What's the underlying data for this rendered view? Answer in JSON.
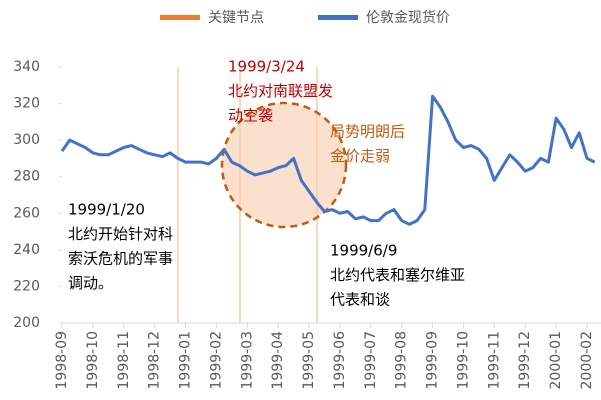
{
  "chart_data": {
    "type": "line",
    "key_nodes": {
      "name": "关键节点",
      "color": "#ed7d31"
    },
    "categories": [
      "1998-09",
      null,
      null,
      null,
      "1998-10",
      null,
      null,
      null,
      "1998-11",
      null,
      null,
      null,
      "1998-12",
      null,
      null,
      null,
      "1999-01",
      null,
      null,
      null,
      "1999-02",
      null,
      null,
      null,
      "1999-03",
      null,
      null,
      null,
      "1999-04",
      null,
      null,
      null,
      "1999-05",
      null,
      null,
      null,
      "1999-06",
      null,
      null,
      null,
      "1999-07",
      null,
      null,
      null,
      "1999-08",
      null,
      null,
      null,
      "1999-09",
      null,
      null,
      null,
      "1999-10",
      null,
      null,
      null,
      "1999-11",
      null,
      null,
      null,
      "1999-12",
      null,
      null,
      null,
      "2000-01",
      null,
      null,
      null,
      "2000-02",
      null
    ],
    "series": [
      {
        "name": "伦敦金现货价",
        "color": "#4472c4",
        "values": [
          294,
          300,
          298,
          296,
          293,
          292,
          292,
          294,
          296,
          297,
          295,
          293,
          292,
          291,
          293,
          290,
          288,
          288,
          288,
          287,
          290,
          295,
          288,
          286,
          283,
          281,
          282,
          283,
          285,
          286,
          290,
          278,
          272,
          266,
          261,
          262,
          260,
          261,
          257,
          258,
          256,
          256,
          260,
          262,
          256,
          254,
          256,
          262,
          324,
          318,
          310,
          300,
          296,
          297,
          295,
          290,
          278,
          285,
          292,
          288,
          283,
          285,
          290,
          288,
          312,
          306,
          296,
          304,
          290,
          288
        ]
      }
    ],
    "ylim": [
      200,
      340
    ],
    "yticks": [
      200,
      220,
      240,
      260,
      280,
      300,
      320,
      340
    ],
    "annotations": [
      {
        "lines": [
          "1999/1/20",
          "北约开始针对科",
          "索沃危机的军事",
          "调动。"
        ],
        "color": "#000000"
      },
      {
        "lines": [
          "1999/3/24",
          "北约对南联盟发",
          "动空袭"
        ],
        "color": "#c00000"
      },
      {
        "lines": [
          "局势明朗后",
          "金价走弱"
        ],
        "color": "#c55a11"
      },
      {
        "lines": [
          "1999/6/9",
          "北约代表和塞尔维亚",
          "代表和谈"
        ],
        "color": "#000000"
      }
    ]
  }
}
